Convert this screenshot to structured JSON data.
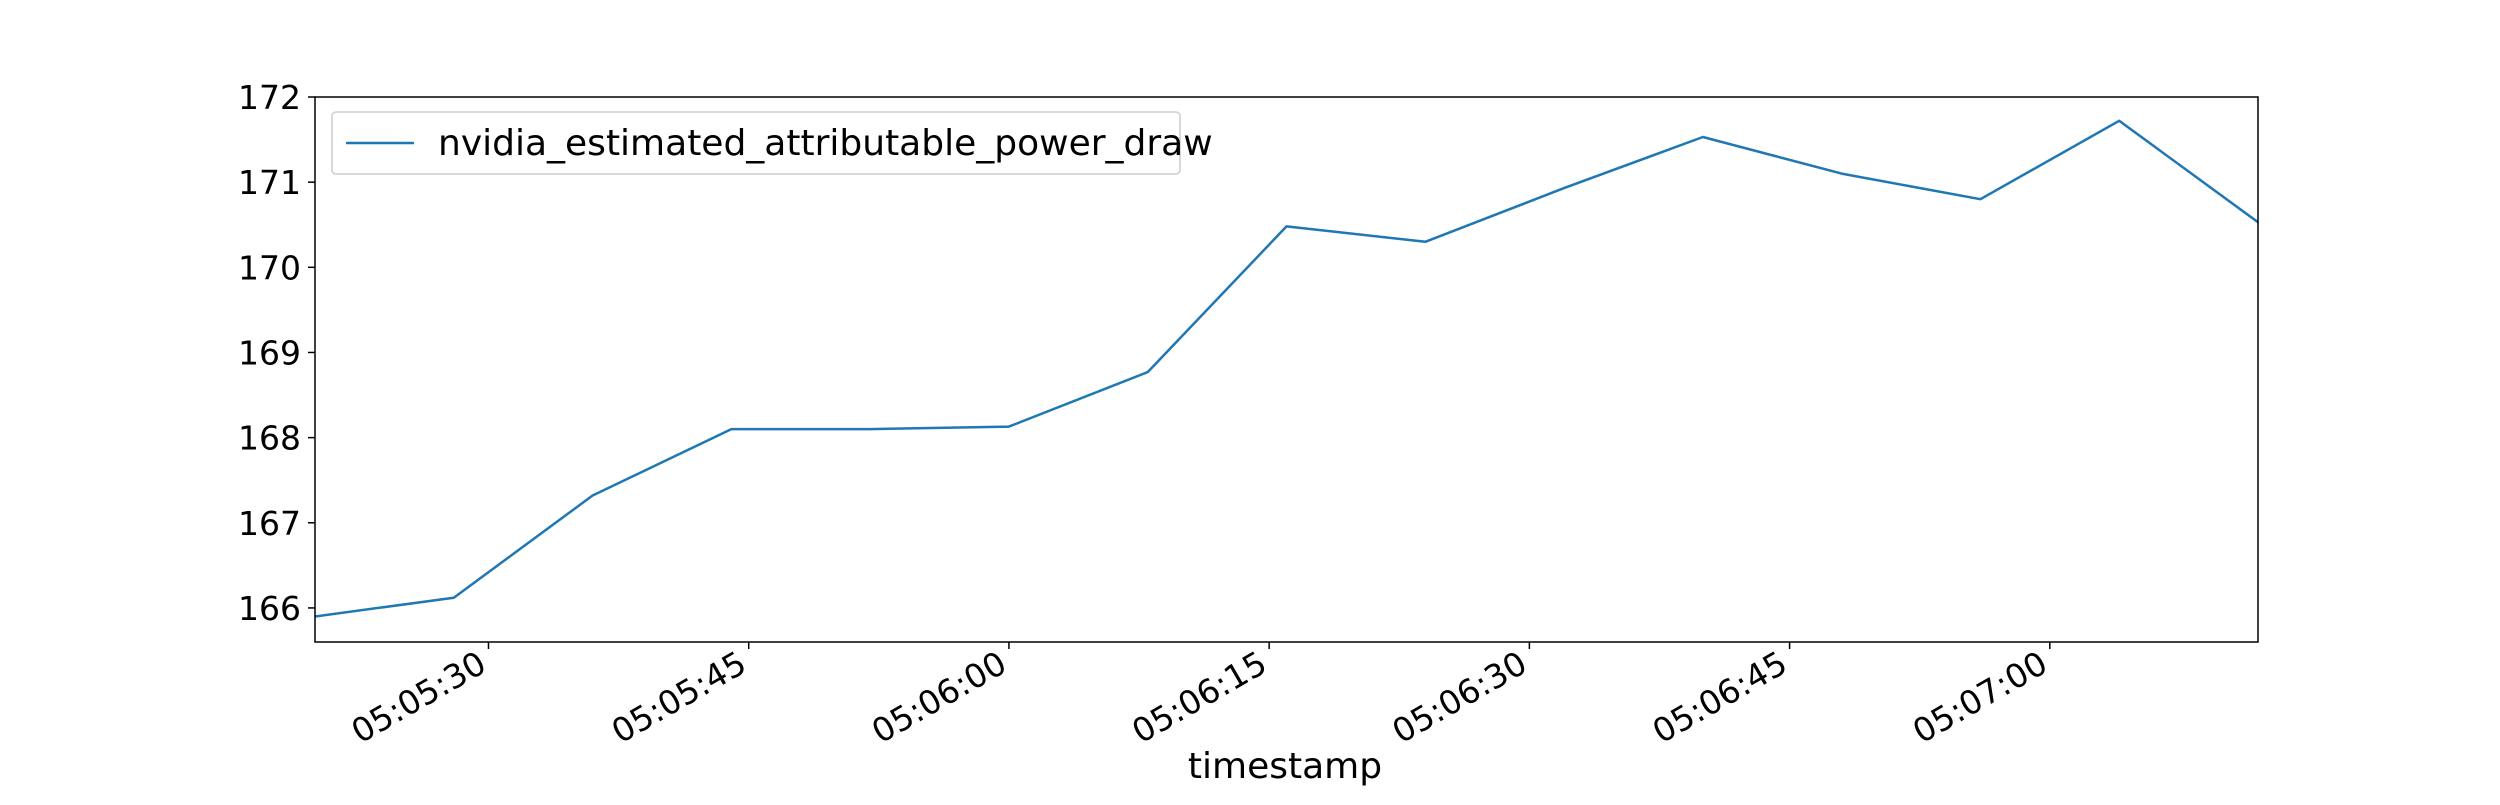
{
  "chart_data": {
    "type": "line",
    "title": "",
    "xlabel": "timestamp",
    "ylabel": "",
    "x": [
      "05:05:20",
      "05:05:28",
      "05:05:36",
      "05:05:44",
      "05:05:52",
      "05:06:00",
      "05:06:08",
      "05:06:16",
      "05:06:24",
      "05:06:32",
      "05:06:40",
      "05:06:48",
      "05:06:56",
      "05:07:04",
      "05:07:12"
    ],
    "series": [
      {
        "name": "nvidia_estimated_attributable_power_draw",
        "color": "#1f77b4",
        "values": [
          165.9,
          166.12,
          167.32,
          168.1,
          168.1,
          168.13,
          168.77,
          170.48,
          170.3,
          170.93,
          171.53,
          171.1,
          170.8,
          171.72,
          170.53
        ]
      }
    ],
    "xticks": [
      "05:05:30",
      "05:05:45",
      "05:06:00",
      "05:06:15",
      "05:06:30",
      "05:06:45",
      "05:07:00"
    ],
    "yticks": [
      166,
      167,
      168,
      169,
      170,
      171,
      172
    ],
    "ylim": [
      165.6,
      172
    ],
    "xlim": [
      "05:05:20",
      "05:07:12"
    ],
    "grid": false,
    "legend_position": "top-left"
  }
}
